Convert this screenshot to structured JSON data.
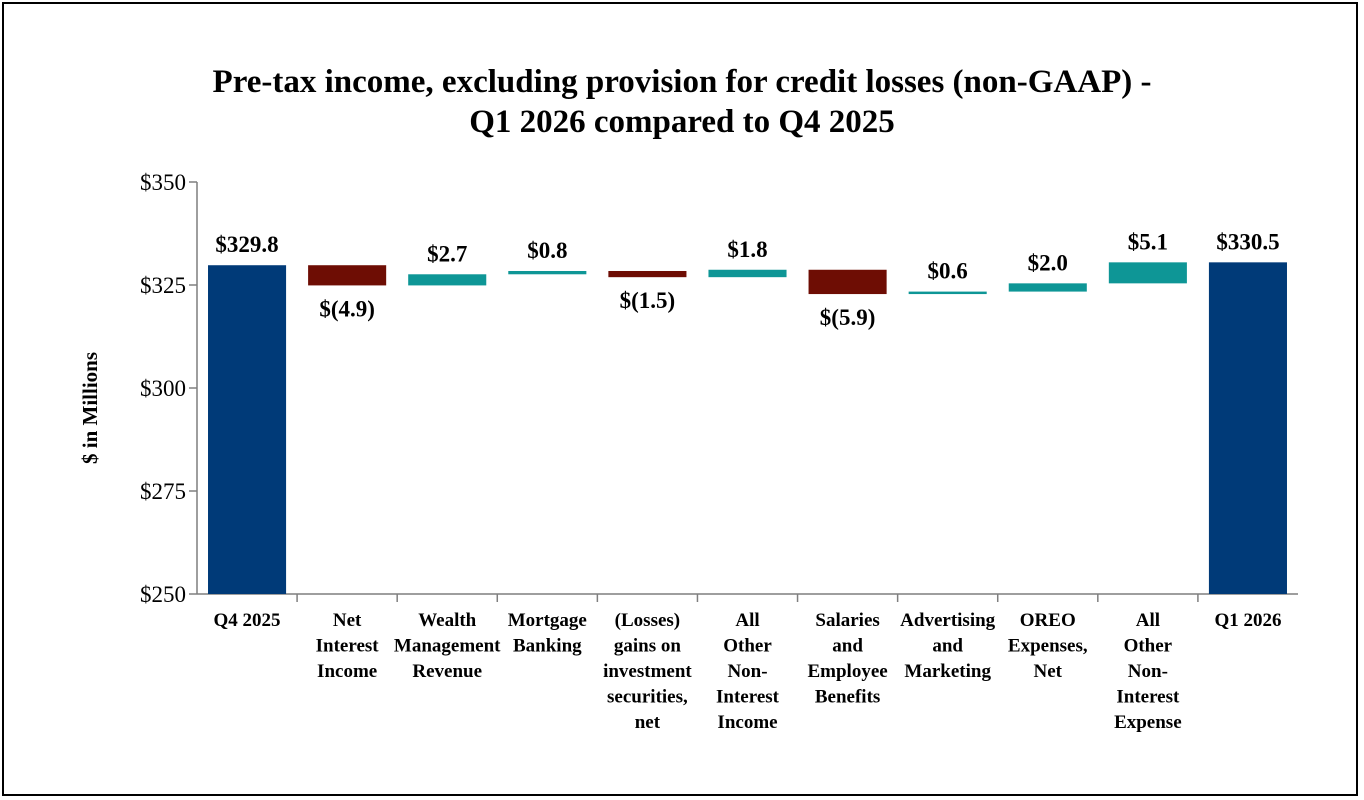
{
  "chart_data": {
    "type": "bar",
    "subtype": "waterfall",
    "title_lines": [
      "Pre-tax income, excluding provision for credit losses (non-GAAP) -",
      "Q1 2026 compared to Q4 2025"
    ],
    "ylabel": "$ in Millions",
    "ylim": [
      250,
      350
    ],
    "yticks": [
      {
        "value": 250,
        "label": "$250"
      },
      {
        "value": 275,
        "label": "$275"
      },
      {
        "value": 300,
        "label": "$300"
      },
      {
        "value": 325,
        "label": "$325"
      },
      {
        "value": 350,
        "label": "$350"
      }
    ],
    "grid": false,
    "legend": "none",
    "colors": {
      "total": "#003a78",
      "increase": "#0e9696",
      "decrease": "#6e0d04"
    },
    "categories": [
      {
        "lines": [
          "Q4 2025"
        ],
        "kind": "total",
        "value": 329.8,
        "label": "$329.8"
      },
      {
        "lines": [
          "Net",
          "Interest",
          "Income"
        ],
        "kind": "delta",
        "value": -4.9,
        "label": "$(4.9)"
      },
      {
        "lines": [
          "Wealth",
          "Management",
          "Revenue"
        ],
        "kind": "delta",
        "value": 2.7,
        "label": "$2.7"
      },
      {
        "lines": [
          "Mortgage",
          "Banking"
        ],
        "kind": "delta",
        "value": 0.8,
        "label": "$0.8"
      },
      {
        "lines": [
          "(Losses)",
          "gains on",
          "investment",
          "securities,",
          "net"
        ],
        "kind": "delta",
        "value": -1.5,
        "label": "$(1.5)"
      },
      {
        "lines": [
          "All",
          "Other",
          "Non-",
          "Interest",
          "Income"
        ],
        "kind": "delta",
        "value": 1.8,
        "label": "$1.8"
      },
      {
        "lines": [
          "Salaries",
          "and",
          "Employee",
          "Benefits"
        ],
        "kind": "delta",
        "value": -5.9,
        "label": "$(5.9)"
      },
      {
        "lines": [
          "Advertising",
          "and",
          "Marketing"
        ],
        "kind": "delta",
        "value": 0.6,
        "label": "$0.6"
      },
      {
        "lines": [
          "OREO",
          "Expenses,",
          "Net"
        ],
        "kind": "delta",
        "value": 2.0,
        "label": "$2.0"
      },
      {
        "lines": [
          "All",
          "Other",
          "Non-",
          "Interest",
          "Expense"
        ],
        "kind": "delta",
        "value": 5.1,
        "label": "$5.1"
      },
      {
        "lines": [
          "Q1 2026"
        ],
        "kind": "total",
        "value": 330.5,
        "label": "$330.5"
      }
    ]
  }
}
